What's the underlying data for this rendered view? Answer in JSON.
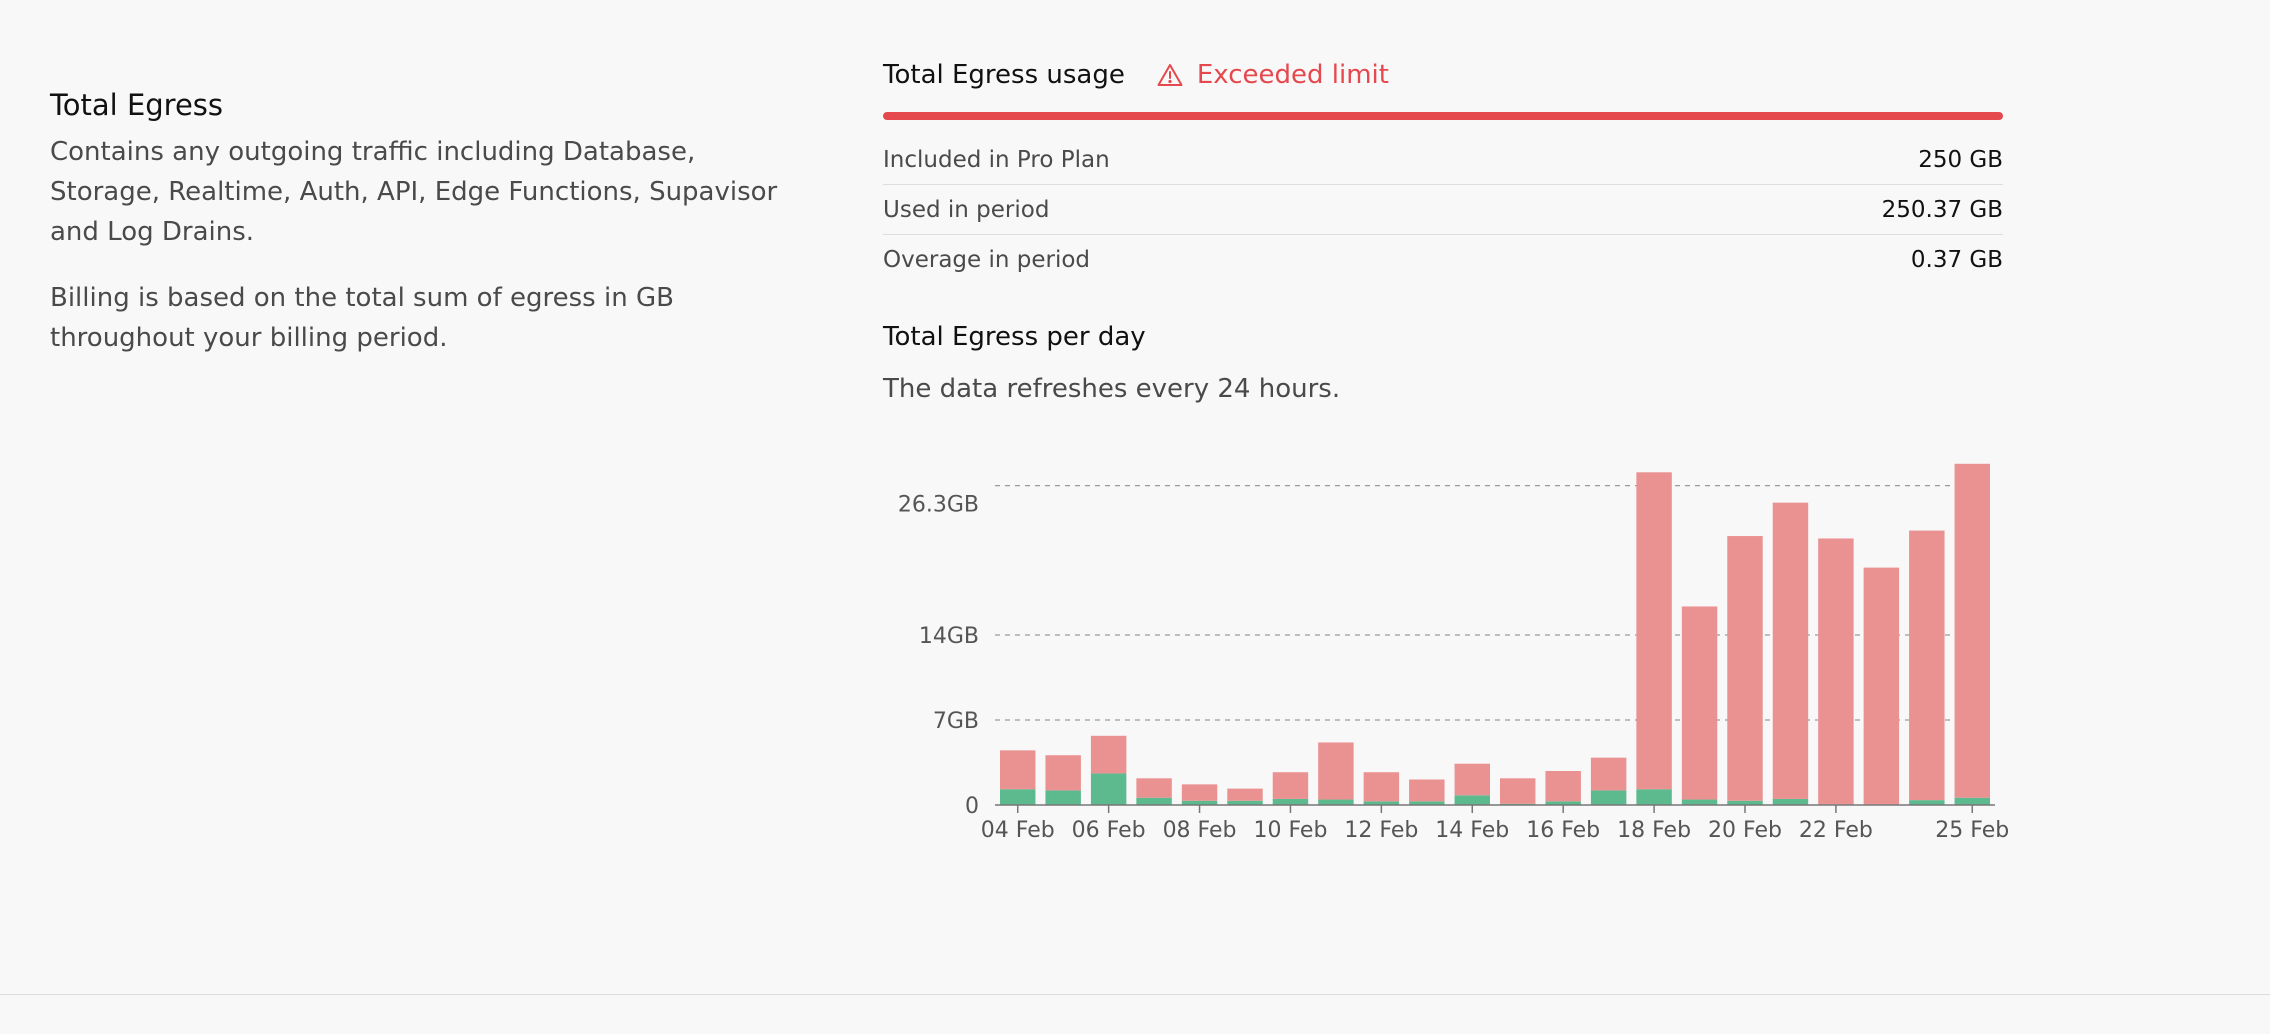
{
  "section": {
    "title": "Total Egress",
    "description": "Contains any outgoing traffic including Database, Storage, Realtime, Auth, API, Edge Functions, Supavisor and Log Drains.",
    "billing_note": "Billing is based on the total sum of egress in GB throughout your billing period."
  },
  "usage": {
    "title": "Total Egress usage",
    "status_label": "Exceeded limit",
    "status_icon": "warning-triangle-icon",
    "status_color": "#e5484d",
    "usage_fraction": 1.0,
    "rows": [
      {
        "label": "Included in Pro Plan",
        "value": "250 GB"
      },
      {
        "label": "Used in period",
        "value": "250.37 GB"
      },
      {
        "label": "Overage in period",
        "value": "0.37 GB"
      }
    ]
  },
  "chart": {
    "title": "Total Egress per day",
    "subtitle": "The data refreshes every 24 hours."
  },
  "chart_data": {
    "type": "bar",
    "stacked": true,
    "categories": [
      "04 Feb",
      "05 Feb",
      "06 Feb",
      "07 Feb",
      "08 Feb",
      "09 Feb",
      "10 Feb",
      "11 Feb",
      "12 Feb",
      "13 Feb",
      "14 Feb",
      "15 Feb",
      "16 Feb",
      "17 Feb",
      "18 Feb",
      "19 Feb",
      "20 Feb",
      "21 Feb",
      "22 Feb",
      "23 Feb",
      "24 Feb",
      "25 Feb"
    ],
    "tick_labels": [
      "04 Feb",
      "06 Feb",
      "08 Feb",
      "10 Feb",
      "12 Feb",
      "14 Feb",
      "16 Feb",
      "18 Feb",
      "20 Feb",
      "22 Feb",
      "25 Feb"
    ],
    "series": [
      {
        "values": [
          1.3,
          1.2,
          2.6,
          0.6,
          0.35,
          0.35,
          0.5,
          0.45,
          0.3,
          0.3,
          0.8,
          0.1,
          0.3,
          1.2,
          1.3,
          0.45,
          0.35,
          0.5,
          0.05,
          0.05,
          0.4,
          0.6
        ],
        "color": "#5dba8e"
      },
      {
        "values": [
          3.2,
          2.9,
          3.1,
          1.6,
          1.35,
          1.0,
          2.2,
          4.7,
          2.4,
          1.8,
          2.6,
          2.1,
          2.5,
          2.7,
          26.1,
          15.9,
          21.8,
          24.4,
          21.9,
          19.5,
          22.2,
          27.5
        ],
        "color": "#ea9291"
      }
    ],
    "y_ticks": [
      0,
      7,
      14,
      26.3
    ],
    "y_tick_labels": [
      "0",
      "7GB",
      "14GB",
      "26.3GB"
    ],
    "ylim": [
      0,
      28.0
    ],
    "ylabel": "",
    "xlabel": "",
    "grid": "dashed horizontal"
  }
}
